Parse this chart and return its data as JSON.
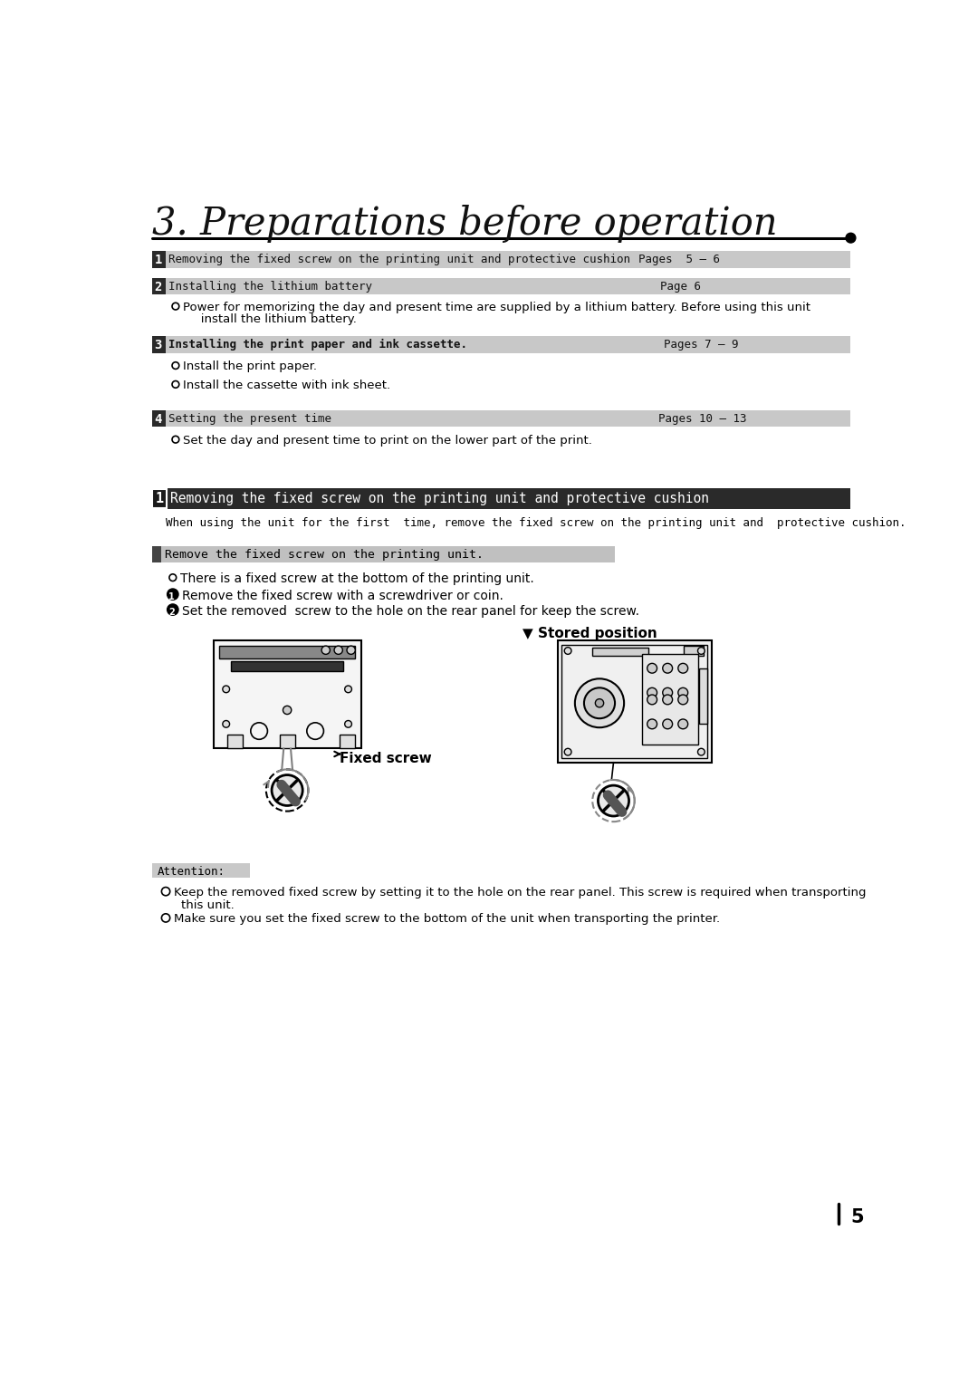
{
  "title": "3. Preparations before operation",
  "background_color": "#ffffff",
  "page_number": "5",
  "section_bar_color": "#c8c8c8",
  "dark_bar_color": "#2a2a2a",
  "sub_bar_color": "#c0c0c0",
  "attention_bar_color": "#c8c8c8",
  "sec1_text": "Removing the fixed screw on the printing unit and protective cushion",
  "sec1_pages": "Pages  5 – 6",
  "sec2_text": "Installing the lithium battery",
  "sec2_pages": "Page 6",
  "sec2_body1": "Power for memorizing the day and present time are supplied by a lithium battery. Before using this unit",
  "sec2_body2": "   install the lithium battery.",
  "sec3_text": "Installing the print paper and ink cassette.",
  "sec3_pages": "Pages 7 – 9",
  "sec3_b1": "Install the print paper.",
  "sec3_b2": "Install the cassette with ink sheet.",
  "sec4_text": "Setting the present time",
  "sec4_pages": "Pages 10 – 13",
  "sec4_body": "Set the day and present time to print on the lower part of the print.",
  "big_header": "Removing the fixed screw on the printing unit and protective cushion",
  "intro_text": "When using the unit for the first  time, remove the fixed screw on the printing unit and  protective cushion.",
  "sub_bar_text": "Remove the fixed screw on the printing unit.",
  "bullet_circle": "There is a fixed screw at the bottom of the printing unit.",
  "bullet1": "Remove the fixed screw with a screwdriver or coin.",
  "bullet2": "Set the removed  screw to the hole on the rear panel for keep the screw.",
  "stored_position_label": "▼ Stored position",
  "fixed_screw_label": "Fixed screw",
  "attention_label": "Attention:",
  "att_b1a": "Keep the removed fixed screw by setting it to the hole on the rear panel. This screw is required when transporting",
  "att_b1b": "this unit.",
  "att_b2": "Make sure you set the fixed screw to the bottom of the unit when transporting the printer."
}
